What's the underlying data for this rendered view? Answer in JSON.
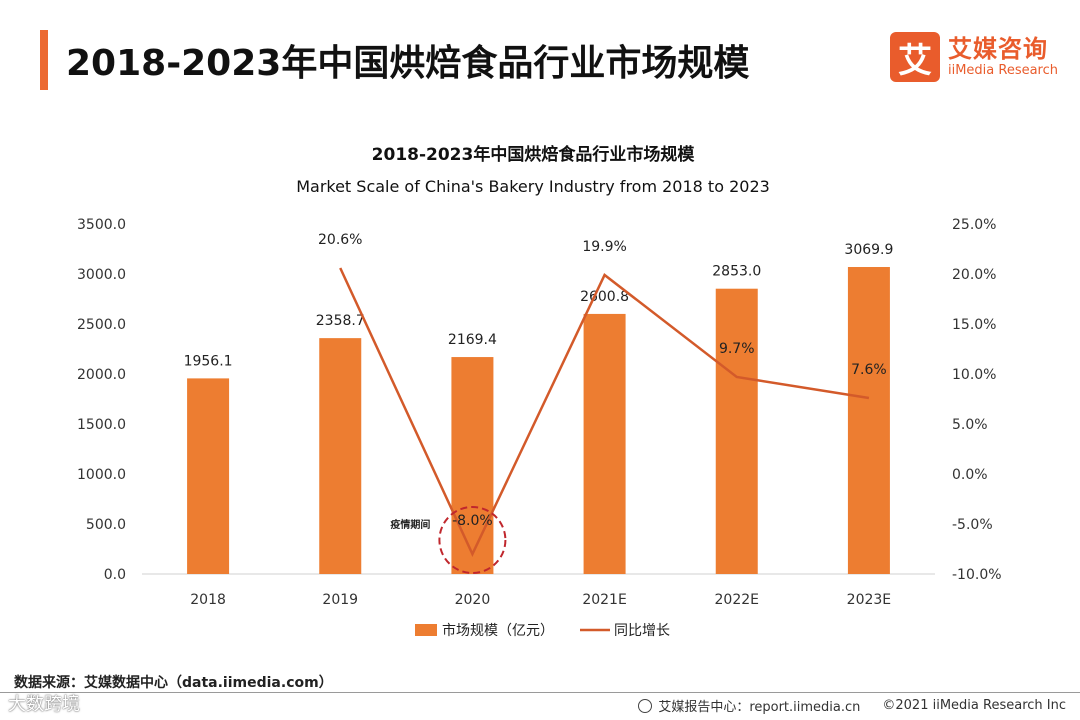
{
  "header": {
    "title": "2018-2023年中国烘焙食品行业市场规模",
    "brand_mark": "艾",
    "brand_cn": "艾媒咨询",
    "brand_en": "iiMedia Research"
  },
  "chart_data": {
    "type": "bar+line",
    "title": "2018-2023年中国烘焙食品行业市场规模",
    "subtitle": "Market Scale of China's Bakery Industry from 2018 to 2023",
    "categories": [
      "2018",
      "2019",
      "2020",
      "2021E",
      "2022E",
      "2023E"
    ],
    "bar_series": {
      "name": "市场规模（亿元）",
      "values": [
        1956.1,
        2358.7,
        2169.4,
        2600.8,
        2853.0,
        3069.9
      ],
      "labels": [
        "1956.1",
        "2358.7",
        "2169.4",
        "2600.8",
        "2853.0",
        "3069.9"
      ]
    },
    "line_series": {
      "name": "同比增长",
      "categories": [
        "2019",
        "2020",
        "2021E",
        "2022E",
        "2023E"
      ],
      "values": [
        20.6,
        -8.0,
        19.9,
        9.7,
        7.6
      ],
      "labels": [
        "20.6%",
        "-8.0%",
        "19.9%",
        "9.7%",
        "7.6%"
      ]
    },
    "y_left": {
      "min": 0,
      "max": 3500,
      "ticks": [
        "0.0",
        "500.0",
        "1000.0",
        "1500.0",
        "2000.0",
        "2500.0",
        "3000.0",
        "3500.0"
      ]
    },
    "y_right": {
      "min": -10,
      "max": 25,
      "ticks": [
        "-10.0%",
        "-5.0%",
        "0.0%",
        "5.0%",
        "10.0%",
        "15.0%",
        "20.0%",
        "25.0%"
      ]
    },
    "annotation": {
      "text": "疫情期间",
      "category": "2020"
    },
    "legend_position": "bottom",
    "colors": {
      "bar": "#ed7d31",
      "line": "#d35a2a",
      "annotation": "#c0272d"
    }
  },
  "footer": {
    "source": "数据来源：艾媒数据中心（data.iimedia.com）",
    "report_center": "艾媒报告中心：report.iimedia.cn",
    "copyright": "©2021  iiMedia Research  Inc",
    "watermark": "大数跨境"
  }
}
